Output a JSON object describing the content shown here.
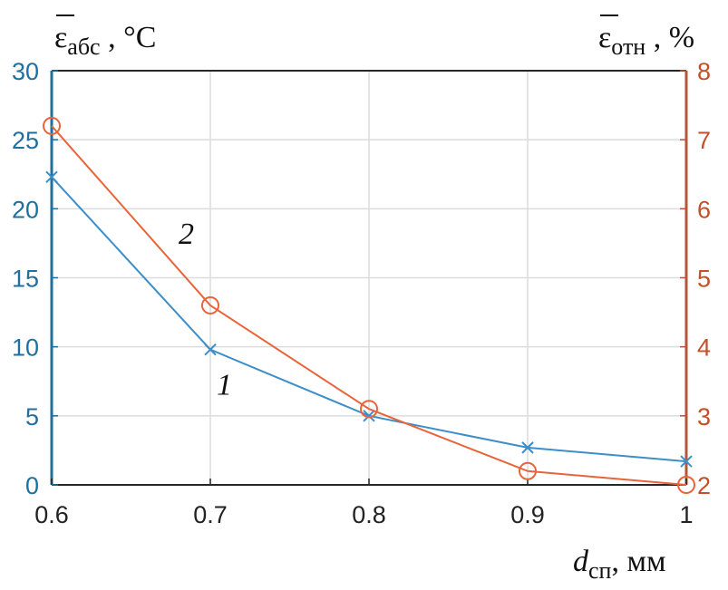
{
  "chart_data": {
    "type": "line",
    "x": [
      0.6,
      0.7,
      0.8,
      0.9,
      1.0
    ],
    "xlim": [
      0.6,
      1.0
    ],
    "x_ticks": [
      "0.6",
      "0.7",
      "0.8",
      "0.9",
      "1"
    ],
    "xlabel": {
      "main": "d",
      "sub": "сп",
      "suffix": ", мм"
    },
    "ylabel_left": {
      "main": "ε",
      "sub": "абс",
      "suffix": " , °C"
    },
    "ylabel_right": {
      "main": "ε",
      "sub": "отн",
      "suffix": " , %"
    },
    "ylim_left": [
      0,
      30
    ],
    "ylim_right": [
      2,
      8
    ],
    "y_ticks_left": [
      "0",
      "5",
      "10",
      "15",
      "20",
      "25",
      "30"
    ],
    "y_ticks_right": [
      "2",
      "3",
      "4",
      "5",
      "6",
      "7",
      "8"
    ],
    "grid": true,
    "series": [
      {
        "name": "1",
        "axis": "left",
        "marker": "x",
        "color": "#3c8ec9",
        "values": [
          22.3,
          9.8,
          5.0,
          2.7,
          1.7
        ]
      },
      {
        "name": "2",
        "axis": "right",
        "marker": "o",
        "color": "#e8643a",
        "values": [
          7.2,
          4.6,
          3.1,
          2.2,
          2.0
        ]
      }
    ]
  }
}
